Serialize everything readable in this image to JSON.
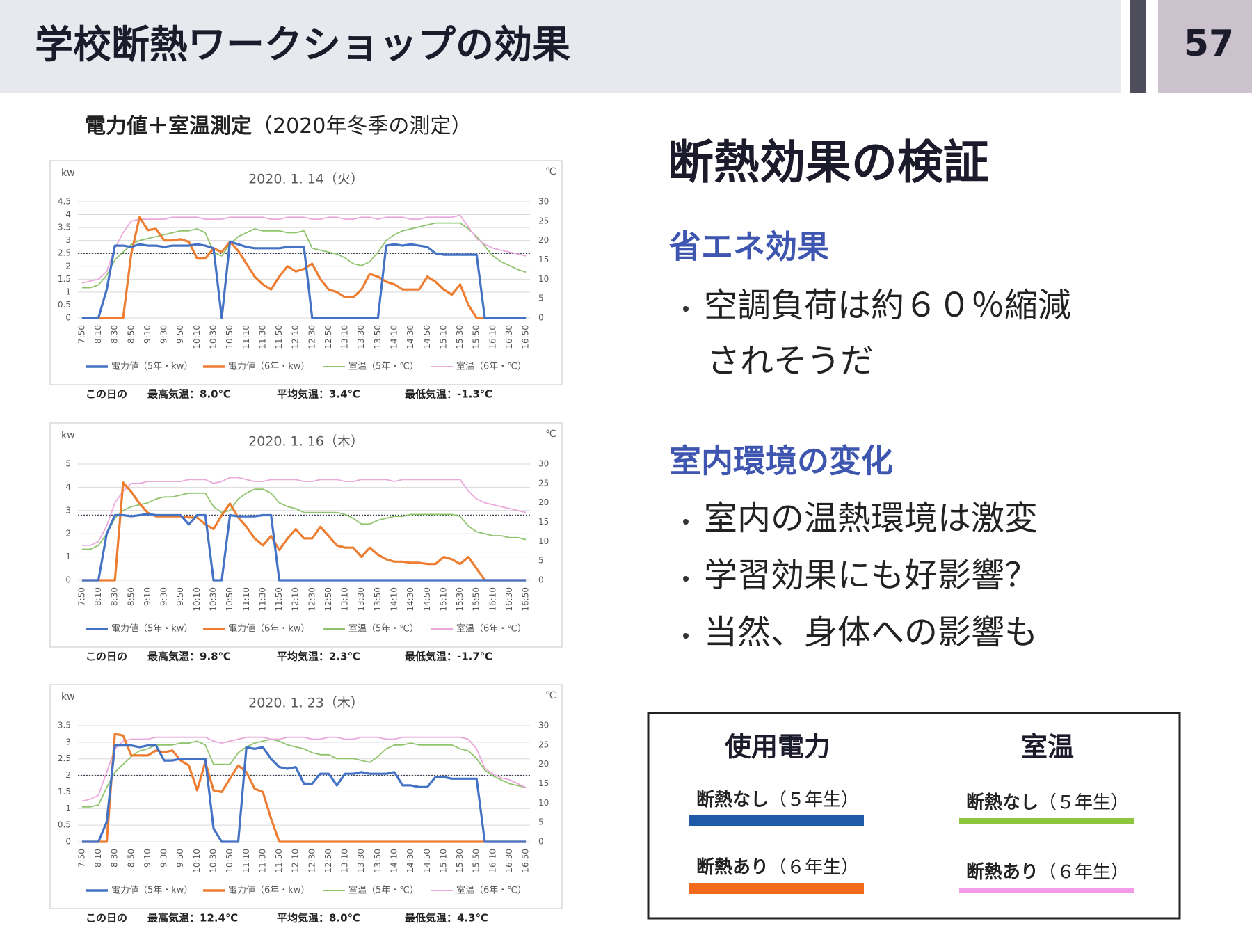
{
  "header": {
    "title": "学校断熱ワークショップの効果",
    "page": "57"
  },
  "subtitle": "電力値＋室温測定",
  "subtitle_note": "（2020年冬季の測定）",
  "right": {
    "heading": "断熱効果の検証",
    "sections": [
      {
        "title": "省エネ効果",
        "bullets": [
          "空調負荷は約６０％縮減"
        ],
        "continuation": "されそうだ"
      },
      {
        "title": "室内環境の変化",
        "bullets": [
          "室内の温熱環境は激変",
          "学習効果にも好影響？",
          "当然、身体への影響も"
        ]
      }
    ]
  },
  "legend_box": {
    "groups": [
      {
        "title": "使用電力",
        "items": [
          {
            "label": "断熱なし",
            "note": "（５年生）",
            "color": "#1f5aa6"
          },
          {
            "label": "断熱あり",
            "note": "（６年生）",
            "color": "#f26b1d"
          }
        ]
      },
      {
        "title": "室温",
        "items": [
          {
            "label": "断熱なし",
            "note": "（５年生）",
            "color": "#8cc63f"
          },
          {
            "label": "断熱あり",
            "note": "（６年生）",
            "color": "#f49ae6"
          }
        ]
      }
    ]
  },
  "chart_data": [
    {
      "type": "line",
      "title": "2020. 1. 14（火）",
      "y_label": "kw",
      "y2_label": "℃",
      "categories": [
        "7:50",
        null,
        "8:10",
        null,
        "8:30",
        null,
        "8:50",
        null,
        "9:10",
        null,
        "9:30",
        null,
        "9:50",
        null,
        "10:10",
        null,
        "10:30",
        null,
        "10:50",
        null,
        "11:10",
        null,
        "11:30",
        null,
        "11:50",
        null,
        "12:10",
        null,
        "12:30",
        null,
        "12:50",
        null,
        "13:10",
        null,
        "13:30",
        null,
        "13:50",
        null,
        "14:10",
        null,
        "14:30",
        null,
        "14:50",
        null,
        "15:10",
        null,
        "15:30",
        null,
        "15:50",
        null,
        "16:10",
        null,
        "16:30",
        null,
        "16:50"
      ],
      "ylim": [
        0,
        4.5
      ],
      "yticks": [
        0,
        0.5,
        1,
        1.5,
        2,
        2.5,
        3,
        3.5,
        4,
        4.5
      ],
      "y2lim": [
        0,
        30
      ],
      "y2ticks": [
        0,
        5,
        10,
        15,
        20,
        25,
        30
      ],
      "grid": true,
      "ref_line": 2.5,
      "series": [
        {
          "name": "電力値（5年・kw）",
          "color": "#4472c4",
          "values": [
            0,
            0,
            0,
            1.1,
            2.8,
            2.8,
            2.75,
            2.85,
            2.8,
            2.8,
            2.75,
            2.8,
            2.8,
            2.8,
            2.85,
            2.8,
            2.7,
            0,
            2.95,
            2.85,
            2.75,
            2.7,
            2.7,
            2.7,
            2.7,
            2.75,
            2.75,
            2.75,
            0,
            0,
            0,
            0,
            0,
            0,
            0,
            0,
            0,
            2.8,
            2.85,
            2.8,
            2.85,
            2.8,
            2.75,
            2.5,
            2.45,
            2.45,
            2.45,
            2.45,
            2.45,
            0,
            0,
            0,
            0,
            0,
            0
          ]
        },
        {
          "name": "電力値（6年・kw）",
          "color": "#ed7d31",
          "values": [
            0,
            0,
            0,
            0,
            0,
            0,
            2.5,
            3.9,
            3.4,
            3.45,
            3.0,
            3.0,
            3.05,
            2.95,
            2.3,
            2.3,
            2.7,
            2.55,
            2.95,
            2.6,
            2.1,
            1.6,
            1.3,
            1.1,
            1.6,
            2.0,
            1.8,
            1.9,
            2.1,
            1.5,
            1.1,
            1.0,
            0.8,
            0.8,
            1.1,
            1.7,
            1.6,
            1.4,
            1.3,
            1.1,
            1.1,
            1.1,
            1.6,
            1.4,
            1.1,
            0.9,
            1.3,
            0.5,
            0,
            0,
            0,
            0,
            0,
            0,
            0
          ]
        },
        {
          "name": "室温（5年・℃）",
          "color": "#8fc46d",
          "axis": "y2",
          "values": [
            7.8,
            7.8,
            8.5,
            11,
            15,
            17,
            19,
            20,
            20.5,
            21,
            21.5,
            22,
            22.5,
            22.5,
            23,
            22,
            17,
            16,
            19,
            21,
            22,
            23,
            22.5,
            22.5,
            22.5,
            22,
            22,
            22.5,
            18,
            17.5,
            17,
            16.5,
            15.5,
            14,
            13.5,
            14.5,
            17,
            20,
            21.5,
            22.5,
            23,
            23.5,
            24,
            24.5,
            24.5,
            24.5,
            24.5,
            23,
            21,
            18.5,
            16,
            14.5,
            13.5,
            12.5,
            11.8
          ]
        },
        {
          "name": "室温（6年・℃）",
          "color": "#eaa8dc",
          "axis": "y2",
          "values": [
            9,
            9.5,
            10,
            12,
            18,
            22,
            25,
            25.5,
            25.5,
            25.5,
            25.5,
            26,
            26,
            26,
            26,
            25.5,
            25.5,
            25.5,
            26,
            26,
            26,
            26,
            26,
            25.5,
            25.5,
            26,
            26,
            26,
            25.5,
            25.5,
            26,
            26,
            25.5,
            25.5,
            26,
            26,
            25.5,
            26,
            26,
            26,
            25.5,
            25.5,
            26,
            26,
            26,
            26,
            26.5,
            23.5,
            20.5,
            19,
            18,
            17.5,
            17,
            16.5,
            16
          ]
        }
      ],
      "notes": [
        "この日の",
        "最高気温：8.0℃",
        "平均気温：3.4℃",
        "最低気温：-1.3℃"
      ]
    },
    {
      "type": "line",
      "title": "2020. 1. 16（木）",
      "y_label": "kw",
      "y2_label": "℃",
      "categories": [
        "7:50",
        null,
        "8:10",
        null,
        "8:30",
        null,
        "8:50",
        null,
        "9:10",
        null,
        "9:30",
        null,
        "9:50",
        null,
        "10:10",
        null,
        "10:30",
        null,
        "10:50",
        null,
        "11:10",
        null,
        "11:30",
        null,
        "11:50",
        null,
        "12:10",
        null,
        "12:30",
        null,
        "12:50",
        null,
        "13:10",
        null,
        "13:30",
        null,
        "13:50",
        null,
        "14:10",
        null,
        "14:30",
        null,
        "14:50",
        null,
        "15:10",
        null,
        "15:30",
        null,
        "15:50",
        null,
        "16:10",
        null,
        "16:30",
        null,
        "16:50"
      ],
      "ylim": [
        0,
        5
      ],
      "yticks": [
        0,
        1,
        2,
        3,
        4,
        5
      ],
      "y2lim": [
        0,
        30
      ],
      "y2ticks": [
        0,
        5,
        10,
        15,
        20,
        25,
        30
      ],
      "grid": true,
      "ref_line": 2.8,
      "series": [
        {
          "name": "電力値（5年・kw）",
          "color": "#4472c4",
          "values": [
            0,
            0,
            0,
            2,
            2.8,
            2.8,
            2.75,
            2.8,
            2.85,
            2.8,
            2.8,
            2.8,
            2.8,
            2.4,
            2.8,
            2.8,
            0,
            0,
            2.8,
            2.75,
            2.75,
            2.75,
            2.8,
            2.8,
            0,
            0,
            0,
            0,
            0,
            0,
            0,
            0,
            0,
            0,
            0,
            0,
            0,
            0,
            0,
            0,
            0,
            0,
            0,
            0,
            0,
            0,
            0,
            0,
            0,
            0,
            0,
            0,
            0,
            0,
            0
          ]
        },
        {
          "name": "電力値（6年・kw）",
          "color": "#ed7d31",
          "values": [
            0,
            0,
            0,
            0,
            0,
            4.2,
            3.8,
            3.3,
            2.9,
            2.75,
            2.75,
            2.75,
            2.75,
            2.7,
            2.7,
            2.4,
            2.2,
            2.8,
            3.3,
            2.7,
            2.3,
            1.8,
            1.5,
            1.9,
            1.3,
            1.8,
            2.2,
            1.8,
            1.8,
            2.3,
            1.9,
            1.5,
            1.4,
            1.4,
            1.0,
            1.4,
            1.1,
            0.9,
            0.8,
            0.8,
            0.75,
            0.75,
            0.7,
            0.7,
            1.0,
            0.9,
            0.7,
            1.0,
            0.5,
            0,
            0,
            0,
            0,
            0,
            0
          ]
        },
        {
          "name": "室温（5年・℃）",
          "color": "#8fc46d",
          "axis": "y2",
          "values": [
            8,
            8,
            9,
            12,
            16,
            18,
            19,
            19.5,
            20,
            21,
            21.5,
            21.5,
            22,
            22.5,
            22.5,
            22.5,
            19,
            17.5,
            18,
            21,
            22.5,
            23.5,
            23.5,
            22.5,
            20,
            19,
            18.5,
            17.5,
            17.5,
            17.5,
            17.5,
            17.5,
            17,
            16,
            14.5,
            14.5,
            15.5,
            16,
            16.5,
            16.5,
            17,
            17,
            17,
            17,
            17,
            17,
            16.5,
            14,
            12.5,
            12,
            11.5,
            11.5,
            11,
            11,
            10.5
          ]
        },
        {
          "name": "室温（6年・℃）",
          "color": "#eaa8dc",
          "axis": "y2",
          "values": [
            9,
            9,
            10,
            14,
            20,
            23,
            25,
            25,
            25.5,
            25.5,
            25.5,
            25.5,
            25.5,
            26,
            26,
            26,
            25,
            25.5,
            26.5,
            26.5,
            26,
            25.5,
            25.5,
            26,
            26,
            26,
            26,
            25.5,
            25.5,
            26,
            26,
            26,
            25.5,
            25.5,
            26,
            26,
            26,
            26,
            25.5,
            26,
            26,
            26,
            26,
            26,
            26,
            26,
            26,
            23,
            21,
            20,
            19.5,
            19,
            18.5,
            18,
            17.5
          ]
        }
      ],
      "notes": [
        "この日の",
        "最高気温：9.8℃",
        "平均気温：2.3℃",
        "最低気温：-1.7℃"
      ]
    },
    {
      "type": "line",
      "title": "2020. 1. 23（木）",
      "y_label": "kw",
      "y2_label": "℃",
      "categories": [
        "7:50",
        null,
        "8:10",
        null,
        "8:30",
        null,
        "8:50",
        null,
        "9:10",
        null,
        "9:30",
        null,
        "9:50",
        null,
        "10:10",
        null,
        "10:30",
        null,
        "10:50",
        null,
        "11:10",
        null,
        "11:30",
        null,
        "11:50",
        null,
        "12:10",
        null,
        "12:30",
        null,
        "12:50",
        null,
        "13:10",
        null,
        "13:30",
        null,
        "13:50",
        null,
        "14:10",
        null,
        "14:30",
        null,
        "14:50",
        null,
        "15:10",
        null,
        "15:30",
        null,
        "15:50",
        null,
        "16:10",
        null,
        "16:30",
        null,
        "16:50"
      ],
      "ylim": [
        0,
        3.5
      ],
      "yticks": [
        0,
        0.5,
        1,
        1.5,
        2,
        2.5,
        3,
        3.5
      ],
      "y2lim": [
        0,
        30
      ],
      "y2ticks": [
        0,
        5,
        10,
        15,
        20,
        25,
        30
      ],
      "grid": true,
      "ref_line": 2.0,
      "series": [
        {
          "name": "電力値（5年・kw）",
          "color": "#4472c4",
          "values": [
            0,
            0,
            0,
            0.6,
            2.9,
            2.9,
            2.9,
            2.85,
            2.9,
            2.9,
            2.45,
            2.45,
            2.5,
            2.5,
            2.5,
            2.5,
            0.4,
            0,
            0,
            0,
            2.85,
            2.8,
            2.85,
            2.5,
            2.25,
            2.2,
            2.25,
            1.75,
            1.75,
            2.05,
            2.05,
            1.7,
            2.05,
            2.05,
            2.1,
            2.05,
            2.05,
            2.05,
            2.1,
            1.7,
            1.7,
            1.65,
            1.65,
            1.95,
            1.95,
            1.9,
            1.9,
            1.9,
            1.9,
            0,
            0,
            0,
            0,
            0,
            0
          ]
        },
        {
          "name": "電力値（6年・kw）",
          "color": "#ed7d31",
          "values": [
            0,
            0,
            0,
            0,
            3.25,
            3.2,
            2.6,
            2.6,
            2.6,
            2.75,
            2.7,
            2.75,
            2.45,
            2.3,
            1.55,
            2.4,
            1.55,
            1.5,
            1.9,
            2.3,
            2.1,
            1.6,
            1.5,
            0.7,
            0,
            0,
            0,
            0,
            0,
            0,
            0,
            0,
            0,
            0,
            0,
            0,
            0,
            0,
            0,
            0,
            0,
            0,
            0,
            0,
            0,
            0,
            0,
            0,
            0,
            0,
            0,
            0,
            0,
            0,
            0
          ]
        },
        {
          "name": "室温（5年・℃）",
          "color": "#8fc46d",
          "axis": "y2",
          "values": [
            9,
            9,
            9.5,
            14,
            18,
            20,
            22,
            23.5,
            24,
            25,
            25,
            25,
            25.5,
            25.5,
            26,
            25,
            20,
            20,
            20,
            23,
            24.5,
            25.5,
            26,
            26.5,
            26,
            25,
            24.5,
            24,
            23,
            22.5,
            22.5,
            21.5,
            21.5,
            21.5,
            21,
            20.5,
            22,
            24,
            25,
            25,
            25.5,
            25,
            25,
            25,
            25,
            25,
            24,
            23.5,
            21.5,
            18.5,
            17,
            16,
            15,
            14.5,
            14
          ]
        },
        {
          "name": "室温（6年・℃）",
          "color": "#eaa8dc",
          "axis": "y2",
          "values": [
            10.5,
            11,
            12,
            18,
            24,
            26,
            26.5,
            26.5,
            26.5,
            27,
            27,
            27,
            27,
            27,
            27,
            27,
            26,
            25.5,
            26,
            26.5,
            27,
            27,
            27,
            26.5,
            26.5,
            27,
            27,
            27,
            26.5,
            26.5,
            27,
            27,
            26.5,
            26.5,
            27,
            27,
            27,
            26.5,
            26.5,
            27,
            27,
            27,
            27,
            27,
            27,
            27,
            27,
            26.5,
            24,
            19,
            17.5,
            16.5,
            16,
            15,
            14
          ]
        }
      ],
      "notes": [
        "この日の",
        "最高気温：12.4℃",
        "平均気温：8.0℃",
        "最低気温：4.3℃"
      ]
    }
  ]
}
